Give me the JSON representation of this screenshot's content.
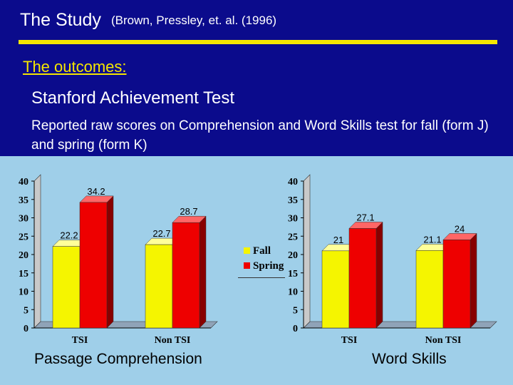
{
  "slide": {
    "title": "The Study",
    "citation": "(Brown, Pressley, et. al. (1996)",
    "subheading": "The outcomes:",
    "test_name": "Stanford Achievement Test",
    "description": "Reported raw scores on Comprehension and Word Skills test for fall (form J) and spring (form K)"
  },
  "colors": {
    "fall": "#f5f500",
    "spring": "#ee0000",
    "panel": "#9fcfe9",
    "background": "#0b0b8c",
    "accent": "#f5e600"
  },
  "legend": {
    "fall": "Fall",
    "spring": "Spring",
    "position": "center"
  },
  "chart_data": [
    {
      "type": "bar",
      "title": "",
      "caption": "Passage Comprehension",
      "categories": [
        "TSI",
        "Non TSI"
      ],
      "series": [
        {
          "name": "Fall",
          "values": [
            22.2,
            22.7
          ]
        },
        {
          "name": "Spring",
          "values": [
            34.2,
            28.7
          ]
        }
      ],
      "data_labels": [
        [
          "22.2",
          "22.7"
        ],
        [
          "34.2",
          "28.7"
        ]
      ],
      "ylim": [
        0,
        40
      ],
      "yticks": [
        "0",
        "5",
        "10",
        "15",
        "20",
        "25",
        "30",
        "35",
        "40"
      ],
      "grid": false,
      "legend": "right"
    },
    {
      "type": "bar",
      "title": "",
      "caption": "Word Skills",
      "categories": [
        "TSI",
        "Non TSI"
      ],
      "series": [
        {
          "name": "Fall",
          "values": [
            21,
            21.1
          ]
        },
        {
          "name": "Spring",
          "values": [
            27.1,
            24
          ]
        }
      ],
      "data_labels": [
        [
          "21",
          "21.1"
        ],
        [
          "27.1",
          "24"
        ]
      ],
      "ylim": [
        0,
        40
      ],
      "yticks": [
        "0",
        "5",
        "10",
        "15",
        "20",
        "25",
        "30",
        "35",
        "40"
      ],
      "grid": false,
      "legend": "left"
    }
  ]
}
